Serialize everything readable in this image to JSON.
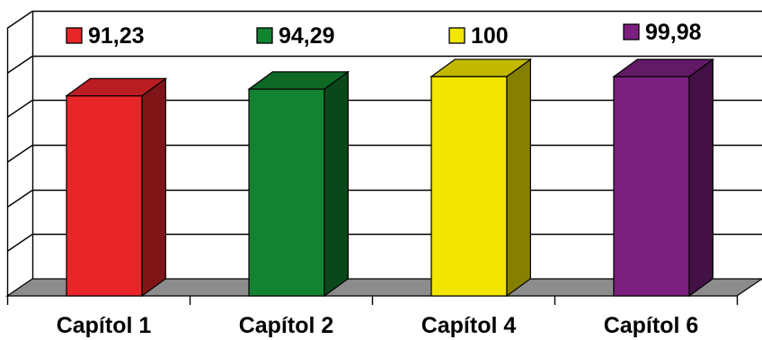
{
  "chart_data": {
    "type": "bar",
    "style": "3d",
    "categories": [
      "Capítol 1",
      "Capítol 2",
      "Capítol 4",
      "Capítol 6"
    ],
    "values": [
      91.23,
      94.29,
      100,
      99.98
    ],
    "value_labels": [
      "91,23",
      "94,29",
      "100",
      "99,98"
    ],
    "colors": [
      "#e8262a",
      "#128331",
      "#f2e600",
      "#7b1f7f"
    ],
    "ylim": [
      0,
      130
    ],
    "grid": true,
    "legend_placement": "top"
  }
}
